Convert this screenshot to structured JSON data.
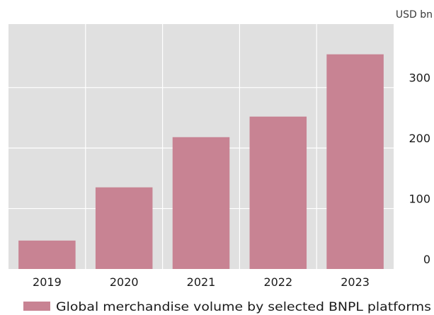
{
  "chart_data": {
    "type": "bar",
    "title": "",
    "xlabel": "",
    "ylabel": "",
    "y_unit": "USD bn",
    "categories": [
      "2019",
      "2020",
      "2021",
      "2022",
      "2023"
    ],
    "series": [
      {
        "name": "Global merchandise volume by selected BNPL platforms",
        "values": [
          47,
          135,
          218,
          252,
          355
        ]
      }
    ],
    "ylim": [
      0,
      405
    ],
    "yticks": [
      0,
      100,
      200,
      300
    ],
    "y_axis_side": "right",
    "grid": true,
    "legend_position": "bottom-center",
    "colors": {
      "bar": "#c88393",
      "plot_background": "#e0e0e0",
      "grid": "#ffffff",
      "text": "#1a1a1a"
    }
  }
}
